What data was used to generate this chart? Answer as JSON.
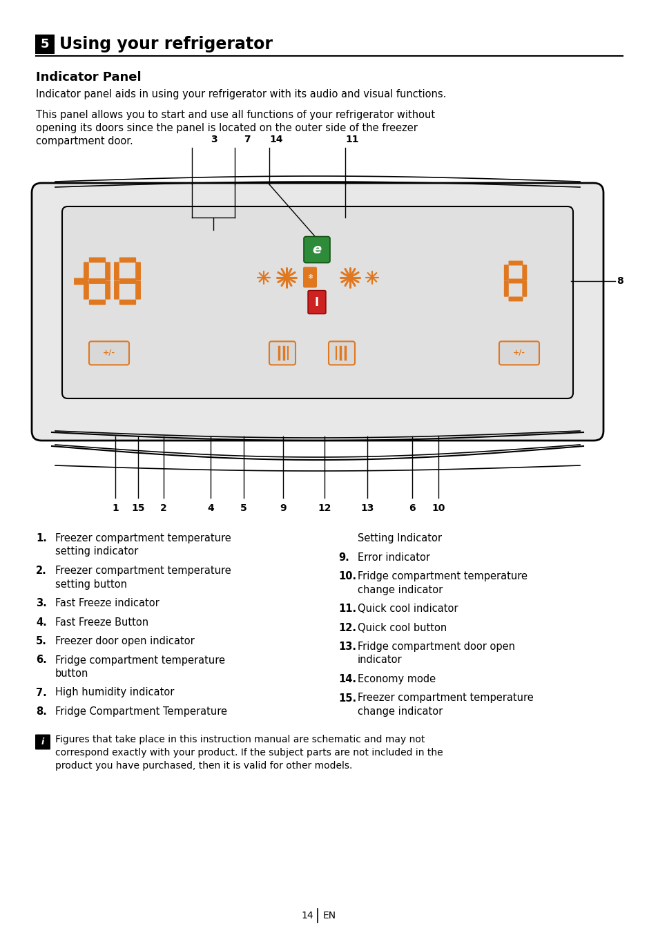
{
  "page_bg": "#ffffff",
  "title_box_text": "5",
  "title_text": "Using your refrigerator",
  "subtitle": "Indicator Panel",
  "para1": "Indicator panel aids in using your refrigerator with its audio and visual functions.",
  "para2": "This panel allows you to start and use all functions of your refrigerator without opening its doors since the panel is located on the outer side of the freezer compartment door.",
  "orange": "#E07820",
  "green": "#2E8B3A",
  "red": "#CC2222",
  "black": "#000000",
  "items_left": [
    {
      "num": "1.",
      "text": "Freezer compartment temperature\nsetting indicator"
    },
    {
      "num": "2.",
      "text": "Freezer compartment temperature\nsetting button"
    },
    {
      "num": "3.",
      "text": "Fast Freeze indicator"
    },
    {
      "num": "4.",
      "text": "Fast Freeze Button"
    },
    {
      "num": "5.",
      "text": "Freezer door open indicator"
    },
    {
      "num": "6.",
      "text": "Fridge compartment temperature\nbutton"
    },
    {
      "num": "7.",
      "text": "High humidity indicator"
    },
    {
      "num": "8.",
      "text": "Fridge Compartment Temperature"
    }
  ],
  "items_right": [
    {
      "num": "",
      "text": "Setting Indicator",
      "indent": true
    },
    {
      "num": "9.",
      "text": "Error indicator"
    },
    {
      "num": "10.",
      "text": "Fridge compartment temperature\nchange indicator"
    },
    {
      "num": "11.",
      "text": "Quick cool indicator"
    },
    {
      "num": "12.",
      "text": "Quick cool button"
    },
    {
      "num": "13.",
      "text": "Fridge compartment door open\nindicator"
    },
    {
      "num": "14.",
      "text": "Economy mode"
    },
    {
      "num": "15.",
      "text": "Freezer compartment temperature\nchange indicator"
    }
  ],
  "note_text": "Figures that take place in this instruction manual are schematic and may not correspond exactly with your product. If the subject parts are not included in the product you have purchased, then it is valid for other models.",
  "page_num": "14"
}
